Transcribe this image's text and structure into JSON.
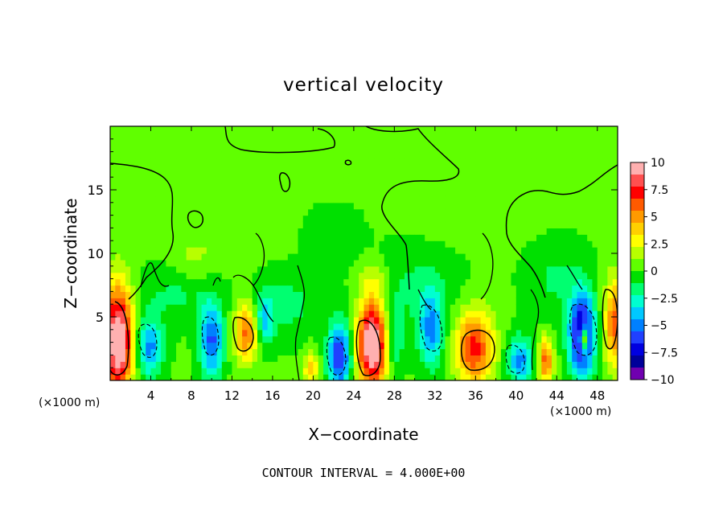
{
  "chart_data": {
    "type": "heatmap",
    "title": "vertical velocity",
    "xlabel": "X−coordinate",
    "ylabel": "Z−coordinate",
    "x_unit_left": "(×1000 m)",
    "x_unit_right": "(×1000 m)",
    "footer": "CONTOUR INTERVAL = 4.000E+00",
    "xlim": [
      0,
      50
    ],
    "ylim": [
      0,
      20
    ],
    "xticks": [
      "4",
      "8",
      "12",
      "16",
      "20",
      "24",
      "28",
      "32",
      "36",
      "40",
      "44",
      "48"
    ],
    "yticks": [
      "5",
      "10",
      "15"
    ],
    "colorbar": {
      "range": [
        -10,
        10
      ],
      "labels": [
        "10",
        "7.5",
        "5",
        "2.5",
        "0",
        "−2.5",
        "−5",
        "−7.5",
        "−10"
      ],
      "colors": [
        "#ffb0b0",
        "#ff5050",
        "#ff0000",
        "#ff5a00",
        "#ff9a00",
        "#ffd000",
        "#ffff00",
        "#b8ff00",
        "#60ff00",
        "#00e000",
        "#00ff70",
        "#00ffd0",
        "#00c8ff",
        "#0080ff",
        "#2040ff",
        "#0000e0",
        "#00009a",
        "#7000b0"
      ]
    },
    "features": [
      {
        "x": 0.8,
        "z": 3.2,
        "value": 11,
        "sx": 1.0,
        "sz": 3.0
      },
      {
        "x": 3.9,
        "z": 2.6,
        "value": -5,
        "sx": 0.9,
        "sz": 1.6
      },
      {
        "x": 10.0,
        "z": 3.2,
        "value": -6,
        "sx": 0.8,
        "sz": 2.0
      },
      {
        "x": 13.4,
        "z": 3.9,
        "value": 6,
        "sx": 0.8,
        "sz": 1.6
      },
      {
        "x": 15.2,
        "z": 4.6,
        "value": -3.5,
        "sx": 0.6,
        "sz": 1.3
      },
      {
        "x": 19.8,
        "z": 1.0,
        "value": 4,
        "sx": 0.5,
        "sz": 0.9
      },
      {
        "x": 22.6,
        "z": 1.9,
        "value": -7,
        "sx": 0.8,
        "sz": 1.9
      },
      {
        "x": 25.8,
        "z": 2.9,
        "value": 11,
        "sx": 1.0,
        "sz": 2.5
      },
      {
        "x": 28.0,
        "z": 3.2,
        "value": -3,
        "sx": 0.6,
        "sz": 1.7
      },
      {
        "x": 31.6,
        "z": 4.0,
        "value": -5,
        "sx": 0.9,
        "sz": 2.0
      },
      {
        "x": 35.9,
        "z": 2.6,
        "value": 7,
        "sx": 1.3,
        "sz": 2.0
      },
      {
        "x": 40.4,
        "z": 1.6,
        "value": -5,
        "sx": 0.9,
        "sz": 1.3
      },
      {
        "x": 42.9,
        "z": 1.6,
        "value": 6,
        "sx": 0.5,
        "sz": 1.2
      },
      {
        "x": 46.5,
        "z": 3.6,
        "value": -9,
        "sx": 0.9,
        "sz": 2.3
      },
      {
        "x": 46.7,
        "z": 3.3,
        "value": 9,
        "sx": 0.3,
        "sz": 0.7
      },
      {
        "x": 49.8,
        "z": 4.6,
        "value": 6,
        "sx": 0.8,
        "sz": 2.4
      },
      {
        "x": 6.5,
        "z": 6.8,
        "value": -1.5,
        "sx": 2.5,
        "sz": 1.6
      },
      {
        "x": 17.0,
        "z": 6.0,
        "value": -1.8,
        "sx": 2.5,
        "sz": 1.8
      },
      {
        "x": 30.0,
        "z": 7.5,
        "value": -1.5,
        "sx": 3.0,
        "sz": 2.0
      },
      {
        "x": 44.0,
        "z": 8.0,
        "value": -1.5,
        "sx": 2.0,
        "sz": 2.0
      },
      {
        "x": 12.0,
        "z": 12.0,
        "value": 0.8,
        "sx": 3.0,
        "sz": 2.0
      },
      {
        "x": 22.0,
        "z": 11.5,
        "value": -0.8,
        "sx": 2.0,
        "sz": 1.5
      },
      {
        "x": 36.0,
        "z": 14.0,
        "value": 0.6,
        "sx": 4.0,
        "sz": 2.0
      },
      {
        "x": 8.0,
        "z": 9.5,
        "value": 1.2,
        "sx": 1.5,
        "sz": 1.2
      },
      {
        "x": 26.0,
        "z": 8.0,
        "value": 1.5,
        "sx": 1.0,
        "sz": 1.0
      }
    ]
  }
}
